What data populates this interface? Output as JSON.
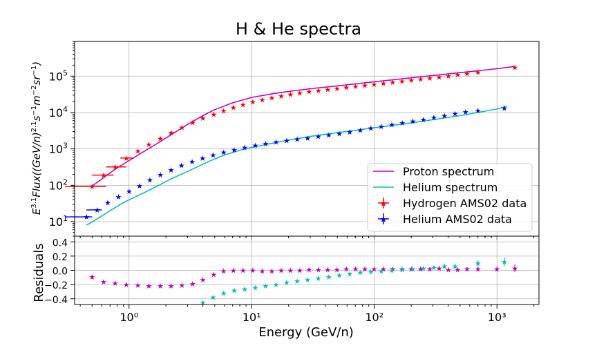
{
  "chart_data": {
    "type": "scatter",
    "title": "H & He spectra",
    "xlabel": "Energy (GeV/n)",
    "x_scale": "log",
    "xlim": [
      0.36,
      2200
    ],
    "x_ticks": [
      {
        "value": 1,
        "label": "10⁰"
      },
      {
        "value": 10,
        "label": "10¹"
      },
      {
        "value": 100,
        "label": "10²"
      },
      {
        "value": 1000,
        "label": "10³"
      }
    ],
    "top_panel": {
      "ylabel": "E^{3.1} Flux((GeV/n)^{2.1}s^{-1}m^{-2}sr^{-1})",
      "ylabel_parts": {
        "base": "E",
        "exp": "3.1",
        "rest": "Flux((GeV/n)",
        "exp2": "2.1",
        "units": "s",
        "e3": "−1",
        "m": "m",
        "e4": "−2",
        "sr": "sr",
        "e5": "−1",
        "close": ")"
      },
      "y_scale": "log",
      "ylim": [
        4,
        900000
      ],
      "y_ticks": [
        {
          "value": 10,
          "base": "10",
          "exp": "1"
        },
        {
          "value": 100,
          "base": "10",
          "exp": "2"
        },
        {
          "value": 1000,
          "base": "10",
          "exp": "3"
        },
        {
          "value": 10000,
          "base": "10",
          "exp": "4"
        },
        {
          "value": 100000,
          "base": "10",
          "exp": "5"
        }
      ],
      "grid": true,
      "legend_position": "lower-right",
      "series": [
        {
          "name": "Proton spectrum",
          "kind": "line",
          "color": "#bf00bf",
          "x": [
            0.5,
            0.6,
            0.7,
            0.8,
            1.0,
            1.3,
            1.6,
            2,
            2.5,
            3,
            4,
            5,
            7,
            10,
            15,
            20,
            30,
            50,
            100,
            200,
            500,
            1000,
            1400
          ],
          "y": [
            95,
            150,
            220,
            300,
            480,
            820,
            1250,
            2000,
            3200,
            4700,
            8200,
            12000,
            18500,
            26000,
            33000,
            38000,
            45000,
            54000,
            70000,
            90000,
            125000,
            160000,
            185000
          ]
        },
        {
          "name": "Helium spectrum",
          "kind": "line",
          "color": "#00bfbf",
          "x": [
            0.45,
            0.55,
            0.7,
            0.85,
            1.0,
            1.3,
            1.7,
            2.2,
            3,
            4,
            5,
            6,
            8,
            10,
            15,
            20,
            30,
            50,
            100,
            200,
            500,
            1000,
            1200
          ],
          "y": [
            8,
            12,
            20,
            30,
            40,
            60,
            95,
            150,
            240,
            380,
            530,
            680,
            920,
            1100,
            1450,
            1750,
            2200,
            2800,
            3800,
            5200,
            8200,
            12500,
            15000
          ]
        },
        {
          "name": "Hydrogen AMS02 data",
          "kind": "points",
          "color": "#ff0000",
          "x": [
            0.5,
            0.62,
            0.77,
            0.95,
            1.18,
            1.45,
            1.8,
            2.2,
            2.7,
            3.3,
            4.0,
            4.9,
            5.9,
            7.1,
            8.5,
            10.2,
            12.2,
            14.6,
            17.4,
            20.7,
            24.7,
            29.4,
            35.0,
            41.7,
            49.6,
            59.1,
            70.3,
            83.7,
            99.6,
            118.6,
            141.2,
            168.1,
            200.2,
            238.3,
            283.7,
            337.8,
            402,
            478,
            570,
            700,
            1400
          ],
          "y": [
            93,
            190,
            320,
            560,
            880,
            1350,
            1950,
            2800,
            3900,
            5300,
            7000,
            9000,
            11200,
            13800,
            16500,
            19500,
            22500,
            25500,
            28500,
            31500,
            34500,
            37500,
            40500,
            43500,
            46500,
            49500,
            52500,
            56000,
            60000,
            64000,
            68500,
            73000,
            78000,
            83000,
            89000,
            95000,
            102000,
            110000,
            118000,
            130000,
            175000
          ],
          "xerr_edges": [
            [
              0.3,
              0.65
            ],
            [
              0.5,
              0.75
            ],
            [
              0.65,
              0.95
            ],
            [
              0.85,
              1.1
            ]
          ]
        },
        {
          "name": "Helium AMS02 data",
          "kind": "points",
          "color": "#0000ff",
          "x": [
            0.45,
            0.55,
            0.67,
            0.82,
            1.0,
            1.22,
            1.48,
            1.8,
            2.2,
            2.68,
            3.27,
            3.98,
            4.85,
            5.91,
            7.2,
            8.77,
            10.7,
            13.0,
            15.8,
            19.3,
            23.5,
            28.6,
            34.9,
            42.5,
            51.8,
            63.1,
            76.9,
            93.6,
            114,
            139,
            169,
            206,
            251,
            306,
            373,
            455,
            555,
            700,
            1150
          ],
          "y": [
            13.5,
            21,
            33,
            48,
            68,
            98,
            140,
            195,
            265,
            350,
            450,
            560,
            680,
            810,
            950,
            1100,
            1250,
            1400,
            1550,
            1700,
            1850,
            2000,
            2200,
            2400,
            2650,
            2950,
            3300,
            3700,
            4150,
            4650,
            5200,
            5800,
            6500,
            7300,
            8200,
            9300,
            10500,
            11500,
            13200
          ],
          "xerr_edges": [
            [
              0.3,
              0.5
            ],
            [
              0.45,
              0.6
            ]
          ]
        }
      ]
    },
    "bottom_panel": {
      "ylabel": "Residuals",
      "ylim": [
        -0.48,
        0.48
      ],
      "y_ticks": [
        {
          "value": 0.4,
          "label": "0.4"
        },
        {
          "value": 0.2,
          "label": "0.2"
        },
        {
          "value": 0.0,
          "label": "0.0"
        },
        {
          "value": -0.2,
          "label": "−0.2"
        },
        {
          "value": -0.4,
          "label": "−0.4"
        }
      ],
      "grid": true,
      "series": [
        {
          "name": "Proton residuals",
          "color": "#bf00bf",
          "x": [
            0.5,
            0.62,
            0.77,
            0.95,
            1.18,
            1.45,
            1.8,
            2.2,
            2.7,
            3.3,
            4.0,
            4.9,
            5.9,
            7.1,
            8.5,
            10.2,
            12.2,
            14.6,
            17.4,
            20.7,
            24.7,
            29.4,
            35.0,
            41.7,
            49.6,
            59.1,
            70.3,
            83.7,
            99.6,
            118.6,
            141.2,
            168.1,
            200.2,
            238.3,
            283.7,
            337.8,
            402,
            478,
            570,
            700,
            1000,
            1400
          ],
          "y": [
            -0.09,
            -0.16,
            -0.18,
            -0.2,
            -0.21,
            -0.22,
            -0.22,
            -0.22,
            -0.21,
            -0.19,
            -0.13,
            -0.06,
            -0.01,
            0.0,
            0.0,
            0.0,
            -0.01,
            -0.01,
            0.0,
            0.0,
            0.0,
            0.01,
            0.01,
            0.01,
            0.01,
            0.02,
            0.02,
            0.02,
            0.02,
            0.02,
            0.02,
            0.02,
            0.02,
            0.02,
            0.02,
            0.03,
            0.01,
            0.01,
            0.02,
            0.02,
            0.02,
            0.03
          ],
          "yerr": [
            0.03,
            0.02,
            0.01,
            0.01,
            0.01,
            0.01,
            0.01,
            0.01,
            0.01,
            0.01,
            0.01,
            0.01,
            0.01,
            0.01,
            0.01,
            0.01,
            0.01,
            0.01,
            0.01,
            0.01,
            0.01,
            0.01,
            0.01,
            0.01,
            0.01,
            0.01,
            0.01,
            0.01,
            0.01,
            0.01,
            0.01,
            0.01,
            0.01,
            0.01,
            0.01,
            0.01,
            0.02,
            0.02,
            0.02,
            0.03,
            0.03,
            0.05
          ]
        },
        {
          "name": "Helium residuals",
          "color": "#00bfbf",
          "x": [
            4.0,
            4.85,
            5.91,
            7.2,
            8.77,
            10.7,
            13.0,
            15.8,
            19.3,
            23.5,
            28.6,
            34.9,
            42.5,
            51.8,
            63.1,
            76.9,
            93.6,
            114,
            139,
            169,
            206,
            251,
            306,
            373,
            455,
            700,
            1150
          ],
          "y": [
            -0.45,
            -0.38,
            -0.32,
            -0.28,
            -0.26,
            -0.24,
            -0.22,
            -0.2,
            -0.17,
            -0.15,
            -0.13,
            -0.11,
            -0.09,
            -0.07,
            -0.05,
            -0.03,
            -0.02,
            -0.01,
            0.0,
            0.01,
            0.02,
            0.03,
            0.04,
            0.06,
            0.06,
            0.1,
            0.12
          ],
          "yerr": [
            0.02,
            0.02,
            0.01,
            0.01,
            0.01,
            0.01,
            0.01,
            0.01,
            0.01,
            0.01,
            0.01,
            0.01,
            0.01,
            0.01,
            0.01,
            0.01,
            0.01,
            0.02,
            0.02,
            0.02,
            0.02,
            0.02,
            0.02,
            0.03,
            0.03,
            0.04,
            0.06
          ]
        }
      ]
    }
  }
}
